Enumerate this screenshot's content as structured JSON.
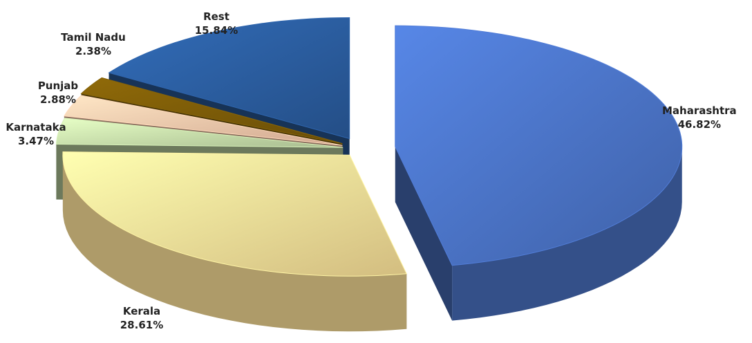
{
  "chart_data": {
    "type": "pie",
    "title": "",
    "slices": [
      {
        "label": "Maharashtra",
        "value": 46.82,
        "value_label": "46.82%",
        "color": "#4a72c4",
        "exploded": true
      },
      {
        "label": "Kerala",
        "value": 28.61,
        "value_label": "28.61%",
        "color": "#f8de96",
        "exploded": true
      },
      {
        "label": "Karnataka",
        "value": 3.47,
        "value_label": "3.47%",
        "color": "#c4dca8",
        "exploded": true
      },
      {
        "label": "Punjab",
        "value": 2.88,
        "value_label": "2.88%",
        "color": "#f6c4a8",
        "exploded": true
      },
      {
        "label": "Tamil Nadu",
        "value": 2.38,
        "value_label": "2.38%",
        "color": "#7a5a08",
        "exploded": true
      },
      {
        "label": "Rest",
        "value": 15.84,
        "value_label": "15.84%",
        "color": "#2a5c9e",
        "exploded": true
      }
    ],
    "legend": "none"
  }
}
